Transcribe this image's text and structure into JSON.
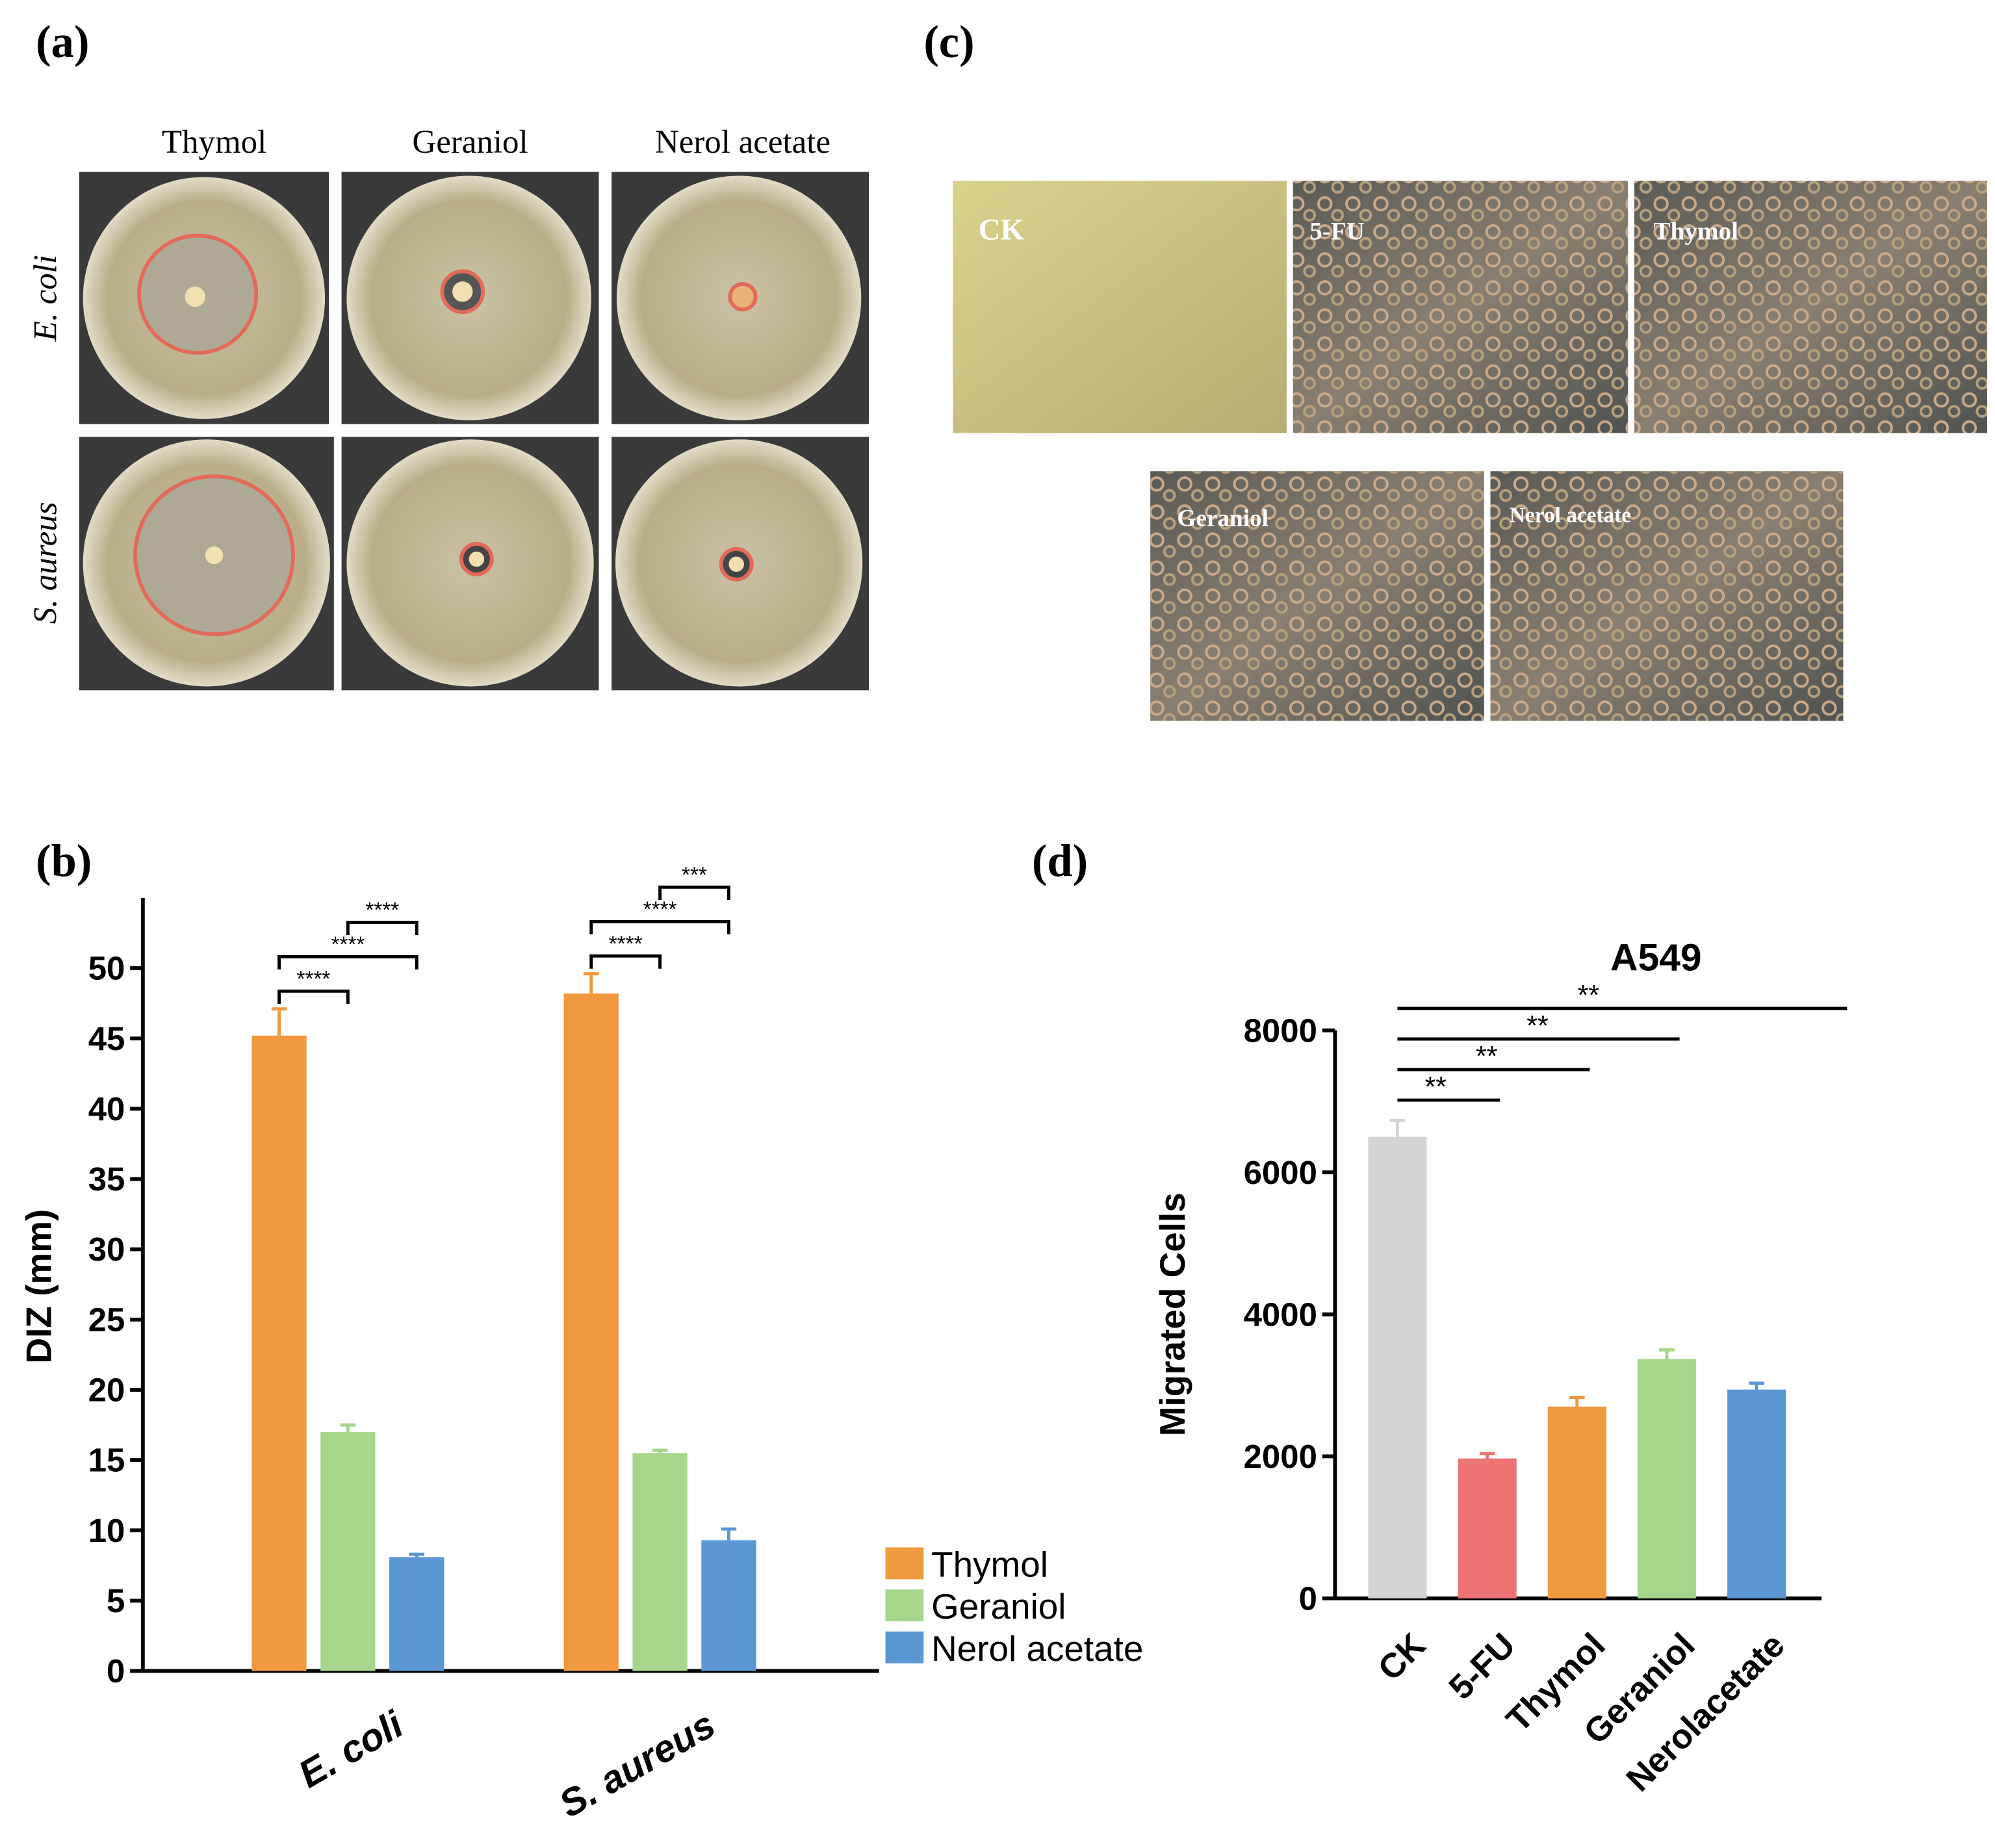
{
  "panel_labels": [
    "(a)",
    "(b)",
    "(c)",
    "(d)"
  ],
  "panel_a": {
    "columns": [
      "Thymol",
      "Geraniol",
      "Nerol acetate"
    ],
    "rows": [
      "E. coli",
      "S. aureus"
    ]
  },
  "panel_c": {
    "images": [
      "CK",
      "5-FU",
      "Thymol",
      "Geraniol",
      "Nerol acetate"
    ]
  },
  "chart_data": [
    {
      "type": "bar",
      "y_label": "DIZ (mm)",
      "categories": [
        "E. coli",
        "S. aureus"
      ],
      "series": [
        {
          "name": "Thymol",
          "color": "#f0993e",
          "values": [
            45.2,
            48.2
          ],
          "errors": [
            1.9,
            1.4
          ]
        },
        {
          "name": "Geraniol",
          "color": "#a6d68c",
          "values": [
            17.0,
            15.5
          ],
          "errors": [
            0.5,
            0.2
          ]
        },
        {
          "name": "Nerol acetate",
          "color": "#5b97d4",
          "values": [
            8.1,
            9.3
          ],
          "errors": [
            0.2,
            0.8
          ]
        }
      ],
      "ylim": [
        0,
        55
      ],
      "yticks": [
        0,
        5,
        10,
        15,
        20,
        25,
        30,
        35,
        40,
        45,
        50
      ],
      "significance": [
        {
          "category": 0,
          "from": 0,
          "to": 1,
          "label": "****"
        },
        {
          "category": 0,
          "from": 0,
          "to": 2,
          "label": "****"
        },
        {
          "category": 0,
          "from": 1,
          "to": 2,
          "label": "****"
        },
        {
          "category": 1,
          "from": 0,
          "to": 1,
          "label": "****"
        },
        {
          "category": 1,
          "from": 0,
          "to": 2,
          "label": "****"
        },
        {
          "category": 1,
          "from": 1,
          "to": 2,
          "label": "***"
        }
      ]
    },
    {
      "type": "bar",
      "title": "A549",
      "y_label": "Migrated Cells",
      "categories": [
        "CK",
        "5-FU",
        "Thymol",
        "Geraniol",
        "Nerolacetate"
      ],
      "values": [
        6500,
        1970,
        2700,
        3370,
        2940
      ],
      "errors": [
        230,
        70,
        130,
        130,
        90
      ],
      "colors": [
        "#d3d5d4",
        "#ec7475",
        "#f0993e",
        "#a6d68c",
        "#5b97d4"
      ],
      "ylim": [
        0,
        8000
      ],
      "yticks": [
        0,
        2000,
        4000,
        6000,
        8000
      ],
      "significance": [
        {
          "from": 0,
          "to": 1,
          "label": "**"
        },
        {
          "from": 0,
          "to": 2,
          "label": "**"
        },
        {
          "from": 0,
          "to": 3,
          "label": "**"
        },
        {
          "from": 0,
          "to": 4,
          "label": "**"
        }
      ]
    }
  ]
}
